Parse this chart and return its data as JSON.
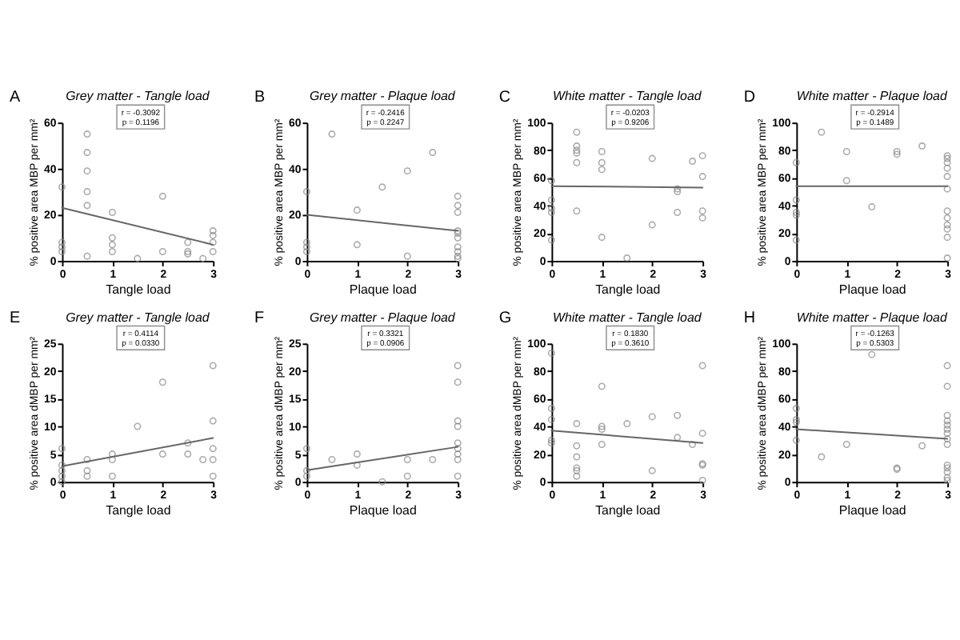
{
  "chart_data": [
    {
      "type": "scatter",
      "title": "Grey matter - Tangle load",
      "xlabel": "Tangle load",
      "ylabel": "% positive area MBP per mm²",
      "annotations": [
        "A",
        "r = -0.3092",
        "p = 0.1196"
      ],
      "xlim": [
        0,
        3
      ],
      "xticks": [
        0,
        1,
        2,
        3
      ],
      "ylim": [
        0,
        60
      ],
      "yticks": [
        0,
        20,
        40,
        60
      ],
      "series": [
        {
          "marker": "circle",
          "color": "#888888",
          "x": [
            0,
            0,
            0,
            0,
            0.5,
            0.5,
            0.5,
            0.5,
            0.5,
            0.5,
            1,
            1,
            1,
            1,
            1.5,
            2,
            2,
            2.5,
            2.5,
            2.5,
            2.8,
            3,
            3,
            3,
            3
          ],
          "values": [
            32,
            8,
            6,
            4,
            55,
            47,
            39,
            30,
            24,
            2,
            21,
            10,
            7,
            4,
            1,
            28,
            4,
            8,
            4,
            3,
            1,
            13,
            11,
            8,
            4
          ]
        },
        {
          "type": "line",
          "color": "#666666",
          "x": [
            0,
            3
          ],
          "values": [
            23,
            7
          ]
        }
      ]
    },
    {
      "type": "scatter",
      "title": "Grey matter - Plaque load",
      "xlabel": "Plaque load",
      "ylabel": "% positive area MBP per mm²",
      "annotations": [
        "B",
        "r = -0.2416",
        "p = 0.2247"
      ],
      "xlim": [
        0,
        3
      ],
      "xticks": [
        0,
        1,
        2,
        3
      ],
      "ylim": [
        0,
        60
      ],
      "yticks": [
        0,
        20,
        40,
        60
      ],
      "series": [
        {
          "marker": "circle",
          "color": "#888888",
          "x": [
            0,
            0,
            0,
            0,
            0.5,
            1,
            1,
            1.5,
            2,
            2,
            2.5,
            3,
            3,
            3,
            3,
            3,
            3,
            3,
            3,
            3,
            3
          ],
          "values": [
            30,
            8,
            6,
            4,
            55,
            22,
            7,
            32,
            39,
            2,
            47,
            28,
            24,
            21,
            13,
            12,
            10,
            6,
            4,
            2,
            1
          ]
        },
        {
          "type": "line",
          "color": "#666666",
          "x": [
            0,
            3
          ],
          "values": [
            20,
            13
          ]
        }
      ]
    },
    {
      "type": "scatter",
      "title": "White matter - Tangle load",
      "xlabel": "Tangle load",
      "ylabel": "% positive area MBP per mm²",
      "annotations": [
        "C",
        "r = -0.0203",
        "p = 0.9206"
      ],
      "xlim": [
        0,
        3
      ],
      "xticks": [
        0,
        1,
        2,
        3
      ],
      "ylim": [
        0,
        100
      ],
      "yticks": [
        0,
        20,
        40,
        60,
        80,
        100
      ],
      "series": [
        {
          "marker": "circle",
          "color": "#888888",
          "x": [
            0,
            0,
            0,
            0,
            0,
            0.5,
            0.5,
            0.5,
            0.5,
            0.5,
            0.5,
            1,
            1,
            1,
            1,
            1.5,
            2,
            2,
            2.5,
            2.5,
            2.5,
            2.8,
            3,
            3,
            3,
            3
          ],
          "values": [
            58,
            44,
            38,
            35,
            15,
            93,
            83,
            80,
            78,
            71,
            36,
            79,
            71,
            66,
            17,
            2,
            74,
            26,
            52,
            50,
            35,
            72,
            76,
            61,
            36,
            31
          ]
        },
        {
          "type": "line",
          "color": "#666666",
          "x": [
            0,
            3
          ],
          "values": [
            54,
            53
          ]
        }
      ]
    },
    {
      "type": "scatter",
      "title": "White matter - Plaque load",
      "xlabel": "Plaque load",
      "ylabel": "% positive area MBP per mm²",
      "annotations": [
        "D",
        "r = -0.2914",
        "p = 0.1489"
      ],
      "xlim": [
        0,
        3
      ],
      "xticks": [
        0,
        1,
        2,
        3
      ],
      "ylim": [
        0,
        100
      ],
      "yticks": [
        0,
        20,
        40,
        60,
        80,
        100
      ],
      "series": [
        {
          "marker": "circle",
          "color": "#888888",
          "x": [
            0,
            0,
            0,
            0,
            0,
            0.5,
            1,
            1,
            1.5,
            2,
            2,
            2.5,
            3,
            3,
            3,
            3,
            3,
            3,
            3,
            3,
            3,
            3,
            3,
            3
          ],
          "values": [
            71,
            44,
            35,
            33,
            15,
            93,
            79,
            58,
            39,
            79,
            77,
            83,
            76,
            74,
            71,
            67,
            61,
            52,
            36,
            31,
            26,
            23,
            17,
            2
          ]
        },
        {
          "type": "line",
          "color": "#666666",
          "x": [
            0,
            3
          ],
          "values": [
            54,
            54
          ]
        }
      ]
    },
    {
      "type": "scatter",
      "title": "Grey matter - Tangle load",
      "xlabel": "Tangle load",
      "ylabel": "% positive area dMBP per mm²",
      "annotations": [
        "E",
        "r = 0.4114",
        "p = 0.0330"
      ],
      "xlim": [
        0,
        3
      ],
      "xticks": [
        0,
        1,
        2,
        3
      ],
      "ylim": [
        0,
        25
      ],
      "yticks": [
        0,
        5,
        10,
        15,
        20,
        25
      ],
      "series": [
        {
          "marker": "circle",
          "color": "#888888",
          "x": [
            0,
            0,
            0,
            0,
            0,
            0.5,
            0.5,
            0.5,
            1,
            1,
            1,
            1.5,
            2,
            2,
            2.5,
            2.5,
            2.8,
            3,
            3,
            3,
            3,
            3
          ],
          "values": [
            6,
            3,
            2,
            1,
            0,
            4,
            2,
            1,
            5,
            4,
            1,
            10,
            18,
            5,
            7,
            5,
            4,
            21,
            11,
            6,
            4,
            1
          ]
        },
        {
          "type": "line",
          "color": "#666666",
          "x": [
            0,
            3
          ],
          "values": [
            2.8,
            7.9
          ]
        }
      ]
    },
    {
      "type": "scatter",
      "title": "Grey matter - Plaque load",
      "xlabel": "Plaque load",
      "ylabel": "% positive area dMBP per mm²",
      "annotations": [
        "F",
        "r = 0.3321",
        "p = 0.0906"
      ],
      "xlim": [
        0,
        3
      ],
      "xticks": [
        0,
        1,
        2,
        3
      ],
      "ylim": [
        0,
        25
      ],
      "yticks": [
        0,
        5,
        10,
        15,
        20,
        25
      ],
      "series": [
        {
          "marker": "circle",
          "color": "#888888",
          "x": [
            0,
            0,
            0,
            0.5,
            1,
            1,
            1.5,
            2,
            2,
            2.5,
            3,
            3,
            3,
            3,
            3,
            3,
            3,
            3,
            3
          ],
          "values": [
            6,
            2,
            1,
            4,
            5,
            3,
            0,
            4,
            1,
            4,
            21,
            18,
            11,
            10,
            7,
            6,
            5,
            4,
            1
          ]
        },
        {
          "type": "line",
          "color": "#666666",
          "x": [
            0,
            3
          ],
          "values": [
            2.1,
            6.3
          ]
        }
      ]
    },
    {
      "type": "scatter",
      "title": "White matter - Tangle load",
      "xlabel": "Tangle load",
      "ylabel": "% positive area dMBP per mm²",
      "annotations": [
        "G",
        "r = 0.1830",
        "p = 0.3610"
      ],
      "xlim": [
        0,
        3
      ],
      "xticks": [
        0,
        1,
        2,
        3
      ],
      "ylim": [
        0,
        100
      ],
      "yticks": [
        0,
        20,
        40,
        60,
        80,
        100
      ],
      "series": [
        {
          "marker": "circle",
          "color": "#888888",
          "x": [
            0,
            0,
            0,
            0,
            0,
            0.5,
            0.5,
            0.5,
            0.5,
            0.5,
            0.5,
            1,
            1,
            1,
            1,
            1.5,
            2,
            2,
            2.5,
            2.5,
            2.8,
            3,
            3,
            3,
            3,
            3
          ],
          "values": [
            93,
            53,
            45,
            30,
            28,
            42,
            26,
            18,
            10,
            8,
            4,
            69,
            40,
            38,
            27,
            42,
            47,
            8,
            48,
            32,
            27,
            84,
            35,
            13,
            12,
            1
          ]
        },
        {
          "type": "line",
          "color": "#666666",
          "x": [
            0,
            3
          ],
          "values": [
            37,
            28
          ]
        }
      ]
    },
    {
      "type": "scatter",
      "title": "White matter - Plaque load",
      "xlabel": "Plaque load",
      "ylabel": "% positive area dMBP per mm²",
      "annotations": [
        "H",
        "r = -0.1263",
        "p = 0.5303"
      ],
      "xlim": [
        0,
        3
      ],
      "xticks": [
        0,
        1,
        2,
        3
      ],
      "ylim": [
        0,
        100
      ],
      "yticks": [
        0,
        20,
        40,
        60,
        80,
        100
      ],
      "series": [
        {
          "marker": "circle",
          "color": "#888888",
          "x": [
            0,
            0,
            0,
            0,
            0.5,
            1,
            1.5,
            2,
            2,
            2.5,
            3,
            3,
            3,
            3,
            3,
            3,
            3,
            3,
            3,
            3,
            3,
            3,
            3,
            3
          ],
          "values": [
            53,
            45,
            43,
            30,
            18,
            27,
            92,
            10,
            9,
            26,
            84,
            69,
            48,
            44,
            41,
            38,
            35,
            31,
            27,
            12,
            10,
            7,
            3,
            1
          ]
        },
        {
          "type": "line",
          "color": "#666666",
          "x": [
            0,
            3
          ],
          "values": [
            38,
            31
          ]
        }
      ]
    }
  ]
}
